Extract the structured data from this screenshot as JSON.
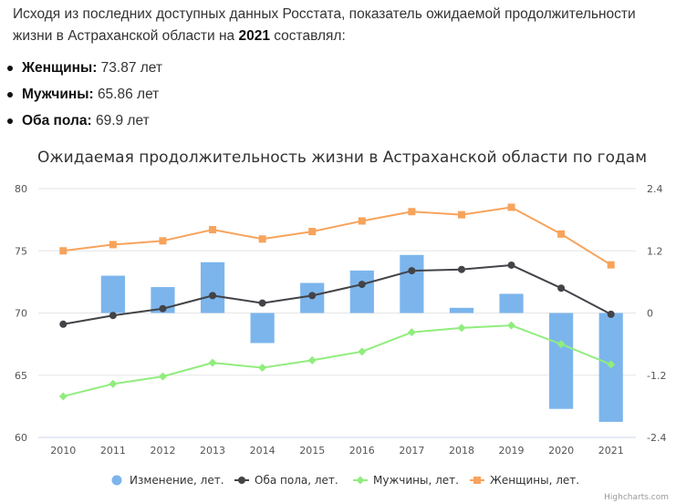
{
  "intro": {
    "before": "Исходя из последних доступных данных Росстата, показатель ожидаемой продолжительности жизни в Астраханской области на ",
    "year": "2021",
    "after": " составлял:"
  },
  "stats": [
    {
      "label": "Женщины:",
      "value": "73.87 лет"
    },
    {
      "label": "Мужчины:",
      "value": "65.86 лет"
    },
    {
      "label": "Оба пола:",
      "value": "69.9 лет"
    }
  ],
  "chart_data": {
    "type": "bar+line",
    "title": "Ожидаемая продолжительность жизни в Астраханской области по годам",
    "categories": [
      "2010",
      "2011",
      "2012",
      "2013",
      "2014",
      "2015",
      "2016",
      "2017",
      "2018",
      "2019",
      "2020",
      "2021"
    ],
    "y_left": {
      "min": 60,
      "max": 80,
      "ticks": [
        60,
        65,
        70,
        75,
        80
      ]
    },
    "y_right": {
      "min": -2.4,
      "max": 2.4,
      "ticks": [
        -2.4,
        -1.2,
        0,
        1.2,
        2.4
      ],
      "tick_labels": [
        "-2.4",
        "-1.2",
        "0",
        "1.2",
        "2.4"
      ]
    },
    "grid": true,
    "legend_position": "bottom",
    "series": [
      {
        "name": "Изменение, лет.",
        "type": "column",
        "axis": "right",
        "color": "#7cb5ec",
        "values": [
          null,
          0.72,
          0.5,
          0.98,
          -0.58,
          0.58,
          0.82,
          1.12,
          0.1,
          0.37,
          -1.85,
          -2.1
        ]
      },
      {
        "name": "Оба пола, лет.",
        "type": "line",
        "axis": "left",
        "color": "#434348",
        "marker": "circle",
        "values": [
          69.1,
          69.8,
          70.35,
          71.4,
          70.8,
          71.4,
          72.3,
          73.4,
          73.5,
          73.85,
          72.0,
          69.9
        ]
      },
      {
        "name": "Мужчины, лет.",
        "type": "line",
        "axis": "left",
        "color": "#90ed7d",
        "marker": "diamond",
        "values": [
          63.3,
          64.3,
          64.9,
          66.0,
          65.6,
          66.2,
          66.9,
          68.45,
          68.8,
          69.0,
          67.5,
          65.86
        ]
      },
      {
        "name": "Женщины, лет.",
        "type": "line",
        "axis": "left",
        "color": "#f7a35c",
        "marker": "square",
        "values": [
          75.0,
          75.5,
          75.8,
          76.7,
          75.95,
          76.55,
          77.4,
          78.15,
          77.9,
          78.5,
          76.35,
          73.87
        ]
      }
    ]
  },
  "credit": "Highcharts.com"
}
